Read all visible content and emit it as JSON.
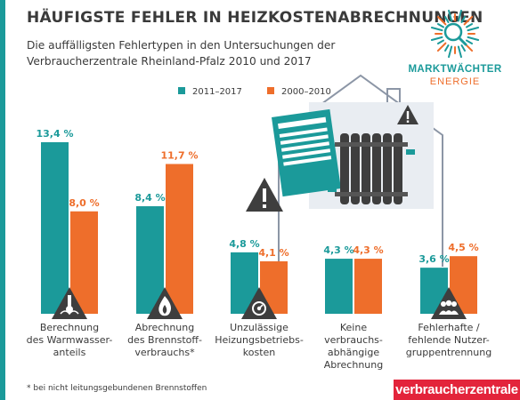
{
  "title": "HÄUFIGSTE FEHLER IN HEIZKOSTENABRECHNUNGEN",
  "subtitle": "Die auffälligsten Fehlertypen in den Untersuchungen der Verbraucherzentrale Rheinland-Pfalz 2010 und 2017",
  "footnote": "* bei nicht leitungsgebundenen Brennstoffen",
  "brand": "verbraucherzentrale",
  "logo": {
    "line1": "MARKTWÄCHTER",
    "line2": "ENERGIE"
  },
  "colors": {
    "teal": "#1b9a9a",
    "orange": "#ee6e2b",
    "brand_red": "#e3243b",
    "text": "#3a3a3a",
    "house_gray": "#8c96a6"
  },
  "icons": [
    "warning-thermometer-icon",
    "warning-flame-icon",
    "warning-meter-icon",
    "warning-people-icon",
    "house-radiator-icon",
    "magnifier-icon"
  ],
  "chart_data": {
    "type": "bar",
    "categories": [
      "Berechnung des Warmwasser-anteils",
      "Abrechnung des Brennstoff-verbrauchs*",
      "Unzulässige Heizungsbetriebs-kosten",
      "Keine verbrauchs-abhängige Abrechnung",
      "Fehlerhafte / fehlende Nutzer-gruppentrennung"
    ],
    "category_lines": [
      [
        "Berechnung",
        "des Warmwasser-",
        "anteils"
      ],
      [
        "Abrechnung",
        "des Brennstoff-",
        "verbrauchs*"
      ],
      [
        "Unzulässige",
        "Heizungsbetriebs-",
        "kosten"
      ],
      [
        "Keine",
        "verbrauchs-",
        "abhängige",
        "Abrechnung"
      ],
      [
        "Fehlerhafte /",
        "fehlende Nutzer-",
        "gruppentrennung"
      ]
    ],
    "series": [
      {
        "name": "2011–2017",
        "values": [
          13.4,
          8.4,
          4.8,
          4.3,
          3.6
        ],
        "labels": [
          "13,4 %",
          "8,4 %",
          "4,8 %",
          "4,3 %",
          "3,6 %"
        ]
      },
      {
        "name": "2000–2010",
        "values": [
          8.0,
          11.7,
          4.1,
          4.3,
          4.5
        ],
        "labels": [
          "8,0 %",
          "11,7 %",
          "4,1 %",
          "4,3 %",
          "4,5 %"
        ]
      }
    ],
    "unit": "%",
    "xlabel": "",
    "ylabel": "",
    "ylim": [
      0,
      13.4
    ],
    "grid": false,
    "legend_position": "top"
  }
}
